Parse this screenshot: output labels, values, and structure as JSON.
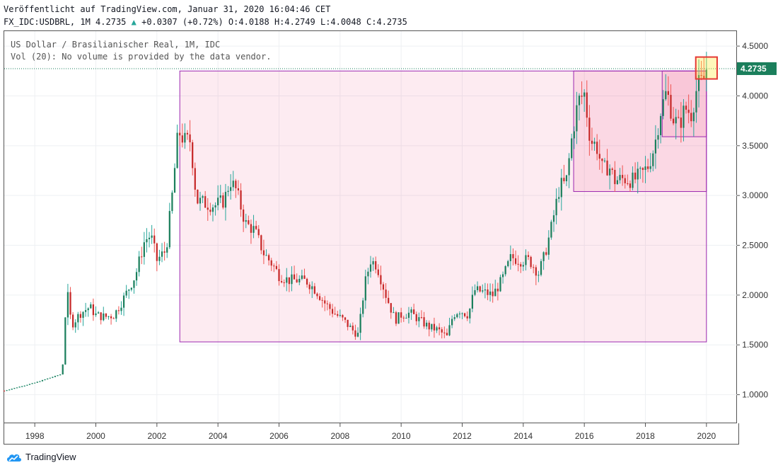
{
  "header": {
    "line1": "Veröffentlicht auf TradingView.com, Januar 31, 2020 16:04:46 CET",
    "symbol": "FX_IDC:USDBRL, 1M 4.2735",
    "change": "+0.0307 (+0.72%)",
    "open": "O:4.0188",
    "high": "H:4.2749",
    "low": "L:4.0048",
    "close": "C:4.2735"
  },
  "legend": {
    "line1": "US Dollar / Brasilianischer Real, 1M, IDC",
    "line2": "Vol (20): No volume is provided by the data vendor."
  },
  "brand": "TradingView",
  "colors": {
    "up": "#26a69a",
    "down": "#ef5350",
    "up_dark": "#1b7f5c",
    "down_dark": "#c62828",
    "box": "#9c27b0",
    "box_fill": "rgba(233,30,99,0.09)",
    "price_tag": "#1b7f5c"
  },
  "chart_data": {
    "type": "candlestick",
    "price_label": "4.2735",
    "last_price": 4.2735,
    "x_ticks": [
      "1998",
      "2000",
      "2002",
      "2004",
      "2006",
      "2008",
      "2010",
      "2012",
      "2014",
      "2016",
      "2018",
      "2020"
    ],
    "y_ticks": [
      "1.0000",
      "1.5000",
      "2.0000",
      "2.5000",
      "3.0000",
      "3.5000",
      "4.0000",
      "4.5000"
    ],
    "ylim": [
      0.72,
      4.65
    ],
    "xlim": [
      1997.0,
      2021.0
    ],
    "series": [
      {
        "t": 1997.0,
        "c": 1.04
      },
      {
        "t": 1998.0,
        "c": 1.12
      },
      {
        "t": 1998.9,
        "c": 1.21
      },
      {
        "t": 1999.05,
        "c": 2.06
      },
      {
        "t": 1999.2,
        "c": 1.7
      },
      {
        "t": 1999.5,
        "c": 1.82
      },
      {
        "t": 1999.8,
        "c": 1.88
      },
      {
        "t": 2000.0,
        "c": 1.8
      },
      {
        "t": 2000.3,
        "c": 1.78
      },
      {
        "t": 2000.6,
        "c": 1.8
      },
      {
        "t": 2000.9,
        "c": 1.96
      },
      {
        "t": 2001.3,
        "c": 2.2
      },
      {
        "t": 2001.6,
        "c": 2.55
      },
      {
        "t": 2001.8,
        "c": 2.6
      },
      {
        "t": 2002.0,
        "c": 2.35
      },
      {
        "t": 2002.3,
        "c": 2.45
      },
      {
        "t": 2002.5,
        "c": 3.0
      },
      {
        "t": 2002.7,
        "c": 3.65
      },
      {
        "t": 2002.9,
        "c": 3.55
      },
      {
        "t": 2003.1,
        "c": 3.55
      },
      {
        "t": 2003.3,
        "c": 2.95
      },
      {
        "t": 2003.6,
        "c": 2.92
      },
      {
        "t": 2003.9,
        "c": 2.9
      },
      {
        "t": 2004.2,
        "c": 2.95
      },
      {
        "t": 2004.4,
        "c": 3.15
      },
      {
        "t": 2004.6,
        "c": 3.05
      },
      {
        "t": 2004.9,
        "c": 2.72
      },
      {
        "t": 2005.2,
        "c": 2.65
      },
      {
        "t": 2005.5,
        "c": 2.42
      },
      {
        "t": 2005.8,
        "c": 2.3
      },
      {
        "t": 2006.0,
        "c": 2.2
      },
      {
        "t": 2006.3,
        "c": 2.15
      },
      {
        "t": 2006.6,
        "c": 2.15
      },
      {
        "t": 2006.9,
        "c": 2.14
      },
      {
        "t": 2007.2,
        "c": 2.05
      },
      {
        "t": 2007.5,
        "c": 1.92
      },
      {
        "t": 2007.8,
        "c": 1.82
      },
      {
        "t": 2008.1,
        "c": 1.75
      },
      {
        "t": 2008.4,
        "c": 1.65
      },
      {
        "t": 2008.6,
        "c": 1.6
      },
      {
        "t": 2008.8,
        "c": 2.1
      },
      {
        "t": 2009.0,
        "c": 2.35
      },
      {
        "t": 2009.2,
        "c": 2.3
      },
      {
        "t": 2009.5,
        "c": 2.0
      },
      {
        "t": 2009.8,
        "c": 1.75
      },
      {
        "t": 2010.0,
        "c": 1.8
      },
      {
        "t": 2010.3,
        "c": 1.82
      },
      {
        "t": 2010.6,
        "c": 1.75
      },
      {
        "t": 2010.9,
        "c": 1.68
      },
      {
        "t": 2011.2,
        "c": 1.65
      },
      {
        "t": 2011.5,
        "c": 1.58
      },
      {
        "t": 2011.7,
        "c": 1.8
      },
      {
        "t": 2011.9,
        "c": 1.85
      },
      {
        "t": 2012.2,
        "c": 1.8
      },
      {
        "t": 2012.4,
        "c": 2.05
      },
      {
        "t": 2012.7,
        "c": 2.03
      },
      {
        "t": 2013.0,
        "c": 2.0
      },
      {
        "t": 2013.3,
        "c": 2.15
      },
      {
        "t": 2013.6,
        "c": 2.38
      },
      {
        "t": 2013.9,
        "c": 2.35
      },
      {
        "t": 2014.2,
        "c": 2.35
      },
      {
        "t": 2014.5,
        "c": 2.22
      },
      {
        "t": 2014.7,
        "c": 2.4
      },
      {
        "t": 2014.9,
        "c": 2.65
      },
      {
        "t": 2015.2,
        "c": 3.1
      },
      {
        "t": 2015.4,
        "c": 3.12
      },
      {
        "t": 2015.6,
        "c": 3.6
      },
      {
        "t": 2015.8,
        "c": 3.95
      },
      {
        "t": 2016.0,
        "c": 4.02
      },
      {
        "t": 2016.2,
        "c": 3.55
      },
      {
        "t": 2016.4,
        "c": 3.5
      },
      {
        "t": 2016.6,
        "c": 3.25
      },
      {
        "t": 2016.8,
        "c": 3.3
      },
      {
        "t": 2017.0,
        "c": 3.15
      },
      {
        "t": 2017.3,
        "c": 3.17
      },
      {
        "t": 2017.6,
        "c": 3.15
      },
      {
        "t": 2017.9,
        "c": 3.22
      },
      {
        "t": 2018.1,
        "c": 3.3
      },
      {
        "t": 2018.3,
        "c": 3.5
      },
      {
        "t": 2018.5,
        "c": 3.85
      },
      {
        "t": 2018.7,
        "c": 4.05
      },
      {
        "t": 2018.9,
        "c": 3.78
      },
      {
        "t": 2019.1,
        "c": 3.7
      },
      {
        "t": 2019.3,
        "c": 3.88
      },
      {
        "t": 2019.5,
        "c": 3.82
      },
      {
        "t": 2019.7,
        "c": 4.1
      },
      {
        "t": 2019.9,
        "c": 4.15
      },
      {
        "t": 2020.0,
        "c": 4.2735
      }
    ],
    "boxes": [
      {
        "x0": 2002.75,
        "x1": 2020.0,
        "y0": 1.53,
        "y1": 4.25
      },
      {
        "x0": 2015.65,
        "x1": 2020.0,
        "y0": 3.04,
        "y1": 4.25
      },
      {
        "x0": 2018.55,
        "x1": 2020.0,
        "y0": 3.59,
        "y1": 4.25
      }
    ],
    "highlight": {
      "x0": 2019.65,
      "x1": 2020.35,
      "y0": 4.17,
      "y1": 4.39
    }
  }
}
